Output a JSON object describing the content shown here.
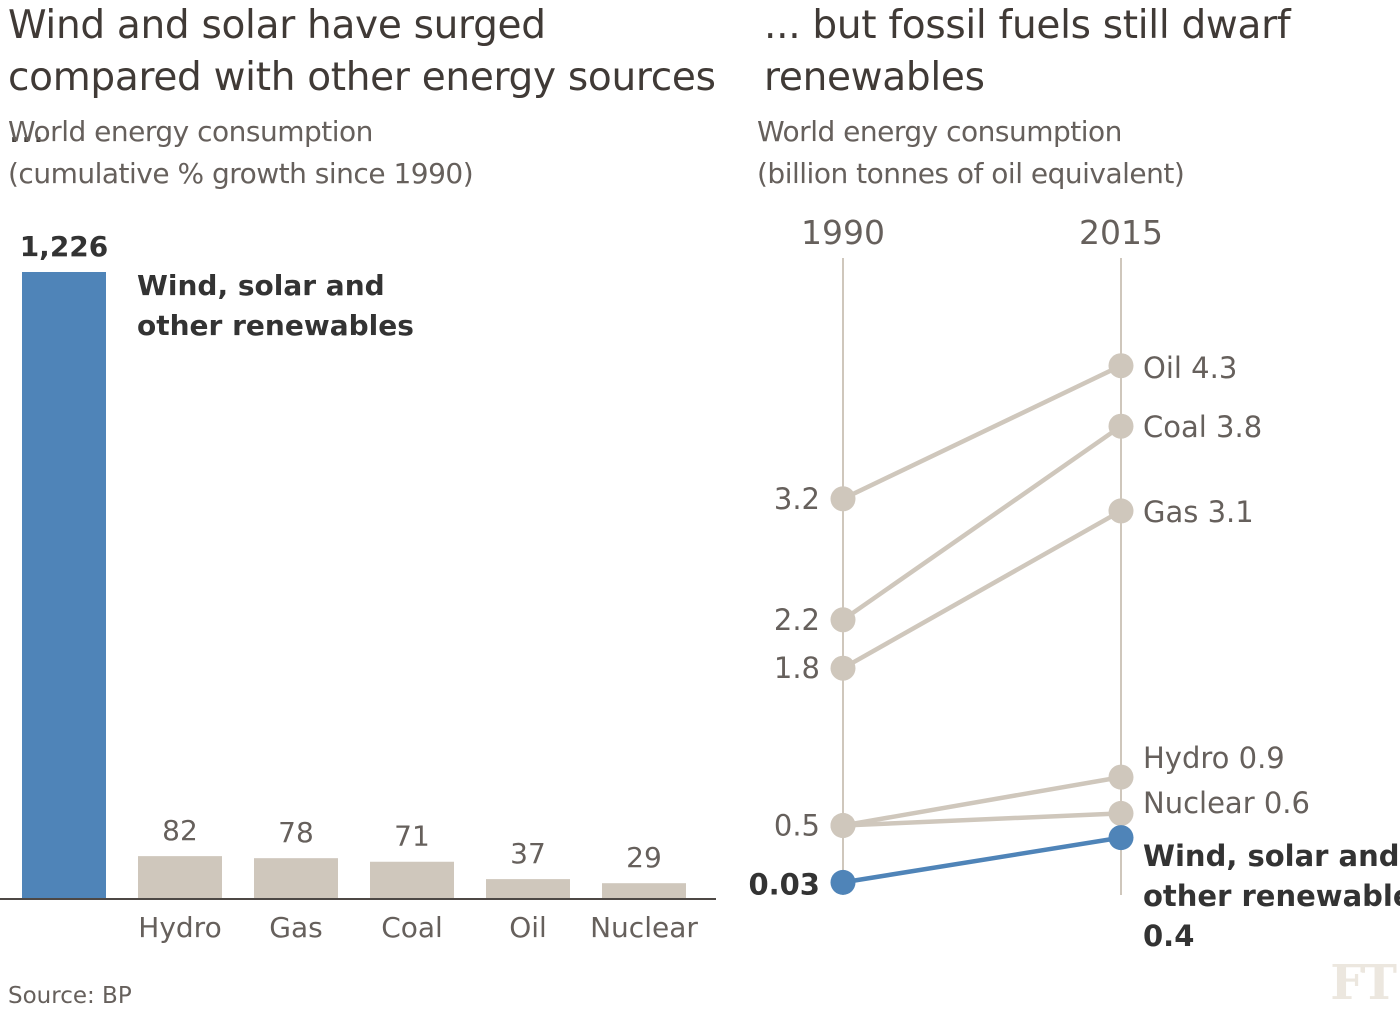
{
  "left_panel": {
    "title": "Wind and solar have surged compared with other energy sources ...",
    "subtitle_line1": "World energy consumption",
    "subtitle_line2": "(cumulative % growth since 1990)"
  },
  "right_panel": {
    "title": "... but fossil fuels still dwarf renewables",
    "subtitle_line1": "World energy consumption",
    "subtitle_line2": "(billion tonnes of oil equivalent)"
  },
  "source": "Source: BP",
  "logo_text": "FT",
  "colors": {
    "highlight": "#4f84b8",
    "muted": "#cfc7bc",
    "axis": "#4d4845",
    "text": "#66605c",
    "bold_text": "#333333"
  },
  "chart_data": [
    {
      "type": "bar",
      "categories": [
        "Wind, solar and other renewables",
        "Hydro",
        "Gas",
        "Coal",
        "Oil",
        "Nuclear"
      ],
      "category_labels": [
        "",
        "Hydro",
        "Gas",
        "Coal",
        "Oil",
        "Nuclear"
      ],
      "values": [
        1226,
        82,
        78,
        71,
        37,
        29
      ],
      "value_labels": [
        "1,226",
        "82",
        "78",
        "71",
        "37",
        "29"
      ],
      "highlight_index": 0,
      "annotation": [
        "Wind, solar and",
        "other renewables"
      ],
      "ylim": [
        0,
        1226
      ]
    },
    {
      "type": "line",
      "x": [
        "1990",
        "2015"
      ],
      "series": [
        {
          "name": "Oil",
          "values": [
            3.2,
            4.3
          ],
          "start_label": "3.2",
          "end_label": [
            "Oil 4.3"
          ],
          "highlight": false
        },
        {
          "name": "Coal",
          "values": [
            2.2,
            3.8
          ],
          "start_label": "2.2",
          "end_label": [
            "Coal 3.8"
          ],
          "highlight": false
        },
        {
          "name": "Gas",
          "values": [
            1.8,
            3.1
          ],
          "start_label": "1.8",
          "end_label": [
            "Gas 3.1"
          ],
          "highlight": false
        },
        {
          "name": "Hydro",
          "values": [
            0.5,
            0.9
          ],
          "start_label": "0.5",
          "end_label": [
            "Hydro 0.9"
          ],
          "highlight": false
        },
        {
          "name": "Nuclear",
          "values": [
            0.5,
            0.6
          ],
          "start_label": "",
          "end_label": [
            "Nuclear 0.6"
          ],
          "highlight": false
        },
        {
          "name": "Wind, solar and other renewables",
          "values": [
            0.03,
            0.4
          ],
          "start_label": "0.03",
          "end_label": [
            "Wind, solar and",
            "other renewables",
            "0.4"
          ],
          "highlight": true
        }
      ]
    }
  ]
}
